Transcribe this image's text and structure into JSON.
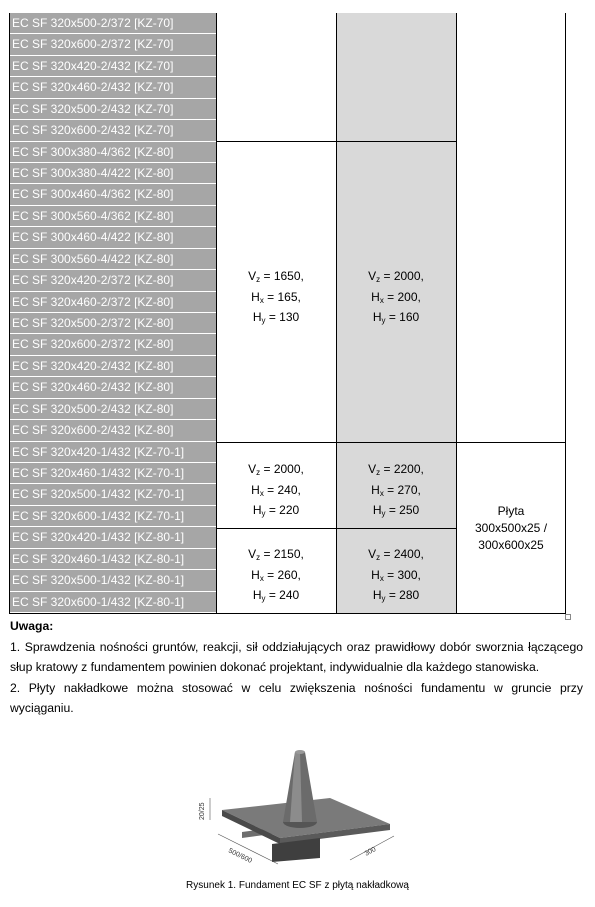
{
  "table": {
    "rows": [
      "EC SF 320x500-2/372 [KZ-70]",
      "EC SF 320x600-2/372 [KZ-70]",
      "EC SF 320x420-2/432 [KZ-70]",
      "EC SF 320x460-2/432 [KZ-70]",
      "EC SF 320x500-2/432 [KZ-70]",
      "EC SF 320x600-2/432 [KZ-70]",
      "EC SF 300x380-4/362 [KZ-80]",
      "EC SF 300x380-4/422 [KZ-80]",
      "EC SF 300x460-4/362 [KZ-80]",
      "EC SF 300x560-4/362 [KZ-80]",
      "EC SF 300x460-4/422 [KZ-80]",
      "EC SF 300x560-4/422 [KZ-80]",
      "EC SF 320x420-2/372 [KZ-80]",
      "EC SF 320x460-2/372 [KZ-80]",
      "EC SF 320x500-2/372 [KZ-80]",
      "EC SF 320x600-2/372 [KZ-80]",
      "EC SF 320x420-2/432 [KZ-80]",
      "EC SF 320x460-2/432 [KZ-80]",
      "EC SF 320x500-2/432 [KZ-80]",
      "EC SF 320x600-2/432 [KZ-80]",
      "EC SF 320x420-1/432 [KZ-70-1]",
      "EC SF 320x460-1/432 [KZ-70-1]",
      "EC SF 320x500-1/432 [KZ-70-1]",
      "EC SF 320x600-1/432 [KZ-70-1]",
      "EC SF 320x420-1/432 [KZ-80-1]",
      "EC SF 320x460-1/432 [KZ-80-1]",
      "EC SF 320x500-1/432 [KZ-80-1]",
      "EC SF 320x600-1/432 [KZ-80-1]"
    ],
    "groups": [
      {
        "a": {
          "vz": "V",
          "vz_sub": "z",
          "vz_val": " = 1650,",
          "hx": "H",
          "hx_sub": "x",
          "hx_val": " = 165,",
          "hy": "H",
          "hy_sub": "y",
          "hy_val": " = 130"
        },
        "b": {
          "vz": "V",
          "vz_sub": "z",
          "vz_val": " = 2000,",
          "hx": "H",
          "hx_sub": "x",
          "hx_val": " = 200,",
          "hy": "H",
          "hy_sub": "y",
          "hy_val": " = 160"
        }
      },
      {
        "a": {
          "vz": "V",
          "vz_sub": "z",
          "vz_val": " = 2000,",
          "hx": "H",
          "hx_sub": "x",
          "hx_val": " = 240,",
          "hy": "H",
          "hy_sub": "y",
          "hy_val": " = 220"
        },
        "b": {
          "vz": "V",
          "vz_sub": "z",
          "vz_val": " = 2200,",
          "hx": "H",
          "hx_sub": "x",
          "hx_val": " = 270,",
          "hy": "H",
          "hy_sub": "y",
          "hy_val": " = 250"
        }
      },
      {
        "a": {
          "vz": "V",
          "vz_sub": "z",
          "vz_val": " = 2150,",
          "hx": "H",
          "hx_sub": "x",
          "hx_val": " = 260,",
          "hy": "H",
          "hy_sub": "y",
          "hy_val": " = 240"
        },
        "b": {
          "vz": "V",
          "vz_sub": "z",
          "vz_val": " = 2400,",
          "hx": "H",
          "hx_sub": "x",
          "hx_val": " = 300,",
          "hy": "H",
          "hy_sub": "y",
          "hy_val": " = 280"
        }
      }
    ],
    "plate": {
      "line1": "Płyta",
      "line2": "300x500x25 /",
      "line3": "300x600x25"
    }
  },
  "notes": {
    "title": "Uwaga:",
    "note1": "1. Sprawdzenia nośności gruntów, reakcji, sił oddziałujących oraz prawidłowy dobór sworznia łączącego słup kratowy z fundamentem powinien dokonać projektant, indywidualnie dla każdego stanowiska.",
    "note2": "2. Płyty nakładkowe można stosować w celu zwiększenia nośności fundamentu w gruncie przy wyciąganiu."
  },
  "figure": {
    "dim_height": "20/25",
    "dim_length": "500/600",
    "dim_width": "300",
    "caption": "Rysunek 1. Fundament EC SF z płytą nakładkową"
  }
}
